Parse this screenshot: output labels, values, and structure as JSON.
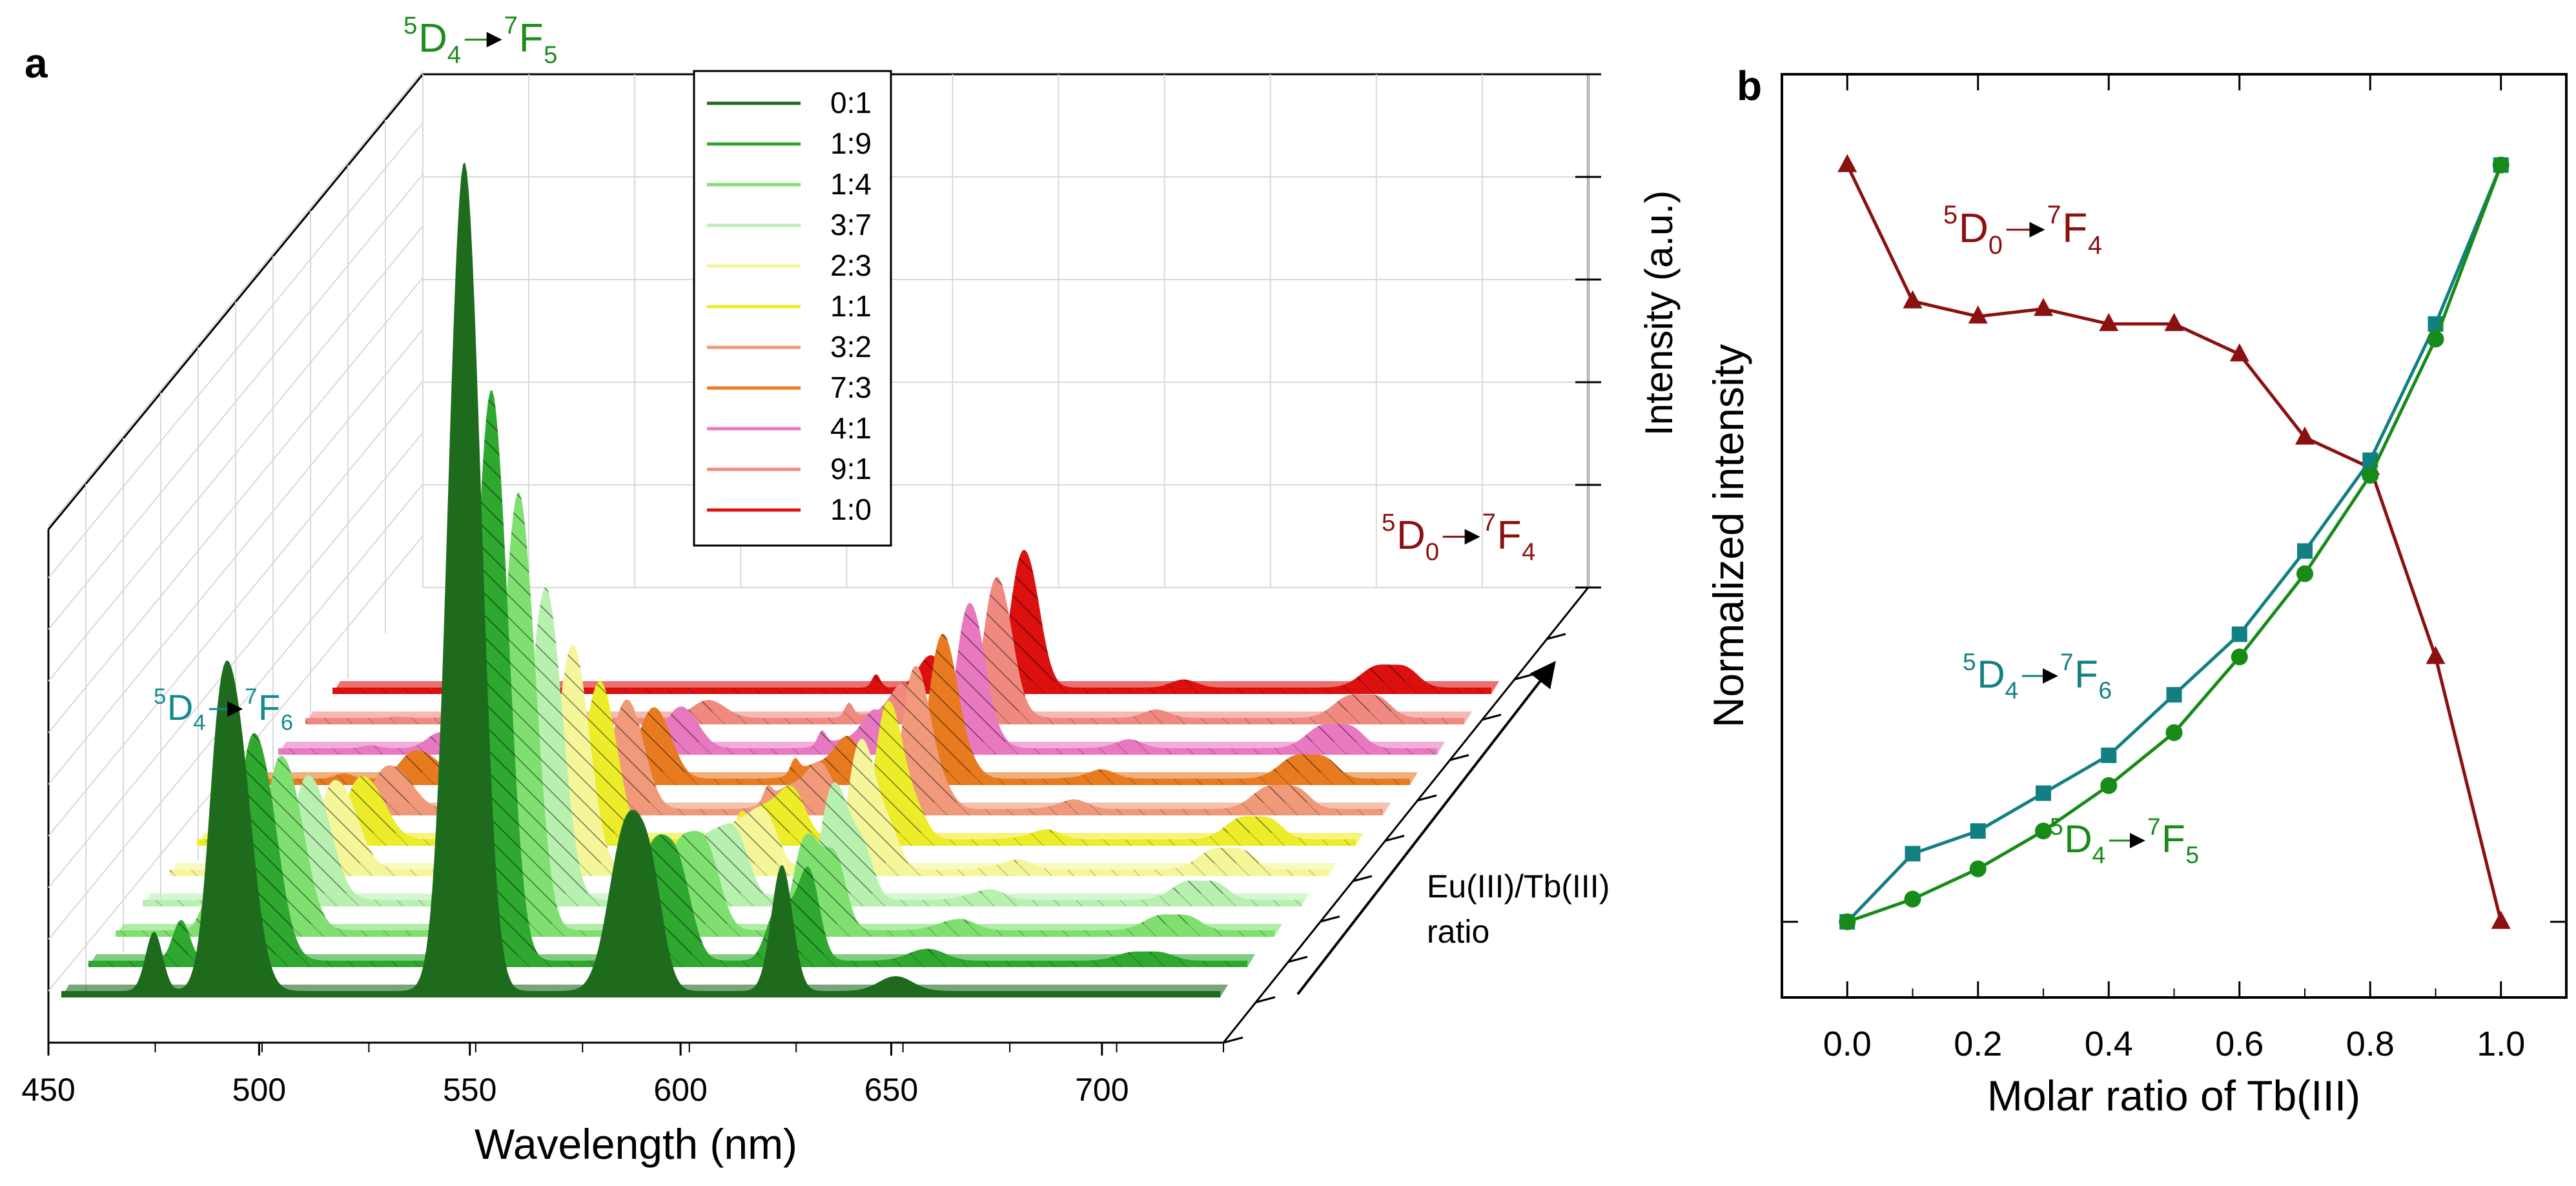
{
  "panel_a": {
    "label": "a",
    "chart_data": {
      "type": "area",
      "title": "",
      "xlabel": "Wavelength (nm)",
      "zlabel": "Intensity (a.u.)",
      "ylabel_line1": "Eu(III)/Tb(III)",
      "ylabel_line2": "ratio",
      "xlim": [
        450,
        725
      ],
      "xticks": [
        "450",
        "500",
        "550",
        "600",
        "650",
        "700"
      ],
      "series": [
        {
          "name": "0:1",
          "color": "#1e6b1e"
        },
        {
          "name": "1:9",
          "color": "#2fa82f"
        },
        {
          "name": "1:4",
          "color": "#7fe070"
        },
        {
          "name": "3:7",
          "color": "#b8f0b0"
        },
        {
          "name": "2:3",
          "color": "#f5f59a"
        },
        {
          "name": "1:1",
          "color": "#ecec2a"
        },
        {
          "name": "3:2",
          "color": "#f09a7a"
        },
        {
          "name": "7:3",
          "color": "#e87a20"
        },
        {
          "name": "4:1",
          "color": "#e878c0"
        },
        {
          "name": "9:1",
          "color": "#f08a80"
        },
        {
          "name": "1:0",
          "color": "#dd1010"
        }
      ],
      "annotations": {
        "tb_green": {
          "main": "D",
          "pre": "5",
          "sub": "4",
          "mid": "F",
          "pre2": "7",
          "sub2": "5"
        },
        "tb_teal": {
          "main": "D",
          "pre": "5",
          "sub": "4",
          "mid": "F",
          "pre2": "7",
          "sub2": "6"
        },
        "eu_red": {
          "main": "D",
          "pre": "5",
          "sub": "0",
          "mid": "F",
          "pre2": "7",
          "sub2": "4"
        }
      }
    }
  },
  "panel_b": {
    "label": "b",
    "chart_data": {
      "type": "line",
      "title": "",
      "xlabel": "Molar ratio of Tb(III)",
      "ylabel": "Normalized intensity",
      "xlim": [
        -0.1,
        1.1
      ],
      "ylim": [
        -0.1,
        1.12
      ],
      "xticks": [
        "0.0",
        "0.2",
        "0.4",
        "0.6",
        "0.8",
        "1.0"
      ],
      "x": [
        0.0,
        0.1,
        0.2,
        0.3,
        0.4,
        0.5,
        0.6,
        0.7,
        0.8,
        0.9,
        1.0
      ],
      "series": [
        {
          "name": "5D0-7F4",
          "color": "#8b1010",
          "marker": "triangle",
          "values": [
            1.0,
            0.82,
            0.8,
            0.81,
            0.79,
            0.79,
            0.75,
            0.64,
            0.6,
            0.35,
            0.0
          ]
        },
        {
          "name": "5D4-7F6",
          "color": "#127f82",
          "marker": "square",
          "values": [
            0.0,
            0.09,
            0.12,
            0.17,
            0.22,
            0.3,
            0.38,
            0.49,
            0.61,
            0.79,
            1.0
          ]
        },
        {
          "name": "5D4-7F5",
          "color": "#178a17",
          "marker": "circle",
          "values": [
            0.0,
            0.03,
            0.07,
            0.12,
            0.18,
            0.25,
            0.35,
            0.46,
            0.59,
            0.77,
            1.0
          ]
        }
      ],
      "annotations": {
        "eu": {
          "main": "D",
          "pre": "5",
          "sub": "0",
          "mid": "F",
          "pre2": "7",
          "sub2": "4"
        },
        "teal": {
          "main": "D",
          "pre": "5",
          "sub": "4",
          "mid": "F",
          "pre2": "7",
          "sub2": "6"
        },
        "green": {
          "main": "D",
          "pre": "5",
          "sub": "4",
          "mid": "F",
          "pre2": "7",
          "sub2": "5"
        }
      }
    }
  }
}
